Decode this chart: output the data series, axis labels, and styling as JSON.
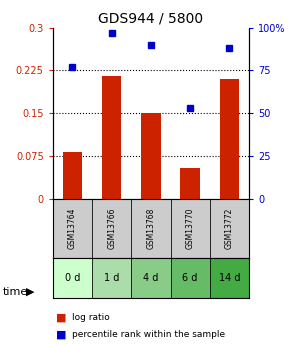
{
  "title": "GDS944 / 5800",
  "samples": [
    "GSM13764",
    "GSM13766",
    "GSM13768",
    "GSM13770",
    "GSM13772"
  ],
  "time_labels": [
    "0 d",
    "1 d",
    "4 d",
    "6 d",
    "14 d"
  ],
  "log_ratio": [
    0.083,
    0.215,
    0.15,
    0.055,
    0.21
  ],
  "percentile_rank": [
    77,
    97,
    90,
    53,
    88
  ],
  "bar_color": "#cc2200",
  "dot_color": "#0000cc",
  "left_ylim": [
    0,
    0.3
  ],
  "right_ylim": [
    0,
    100
  ],
  "left_yticks": [
    0,
    0.075,
    0.15,
    0.225,
    0.3
  ],
  "right_yticks": [
    0,
    25,
    50,
    75,
    100
  ],
  "left_yticklabels": [
    "0",
    "0.075",
    "0.15",
    "0.225",
    "0.3"
  ],
  "right_yticklabels": [
    "0",
    "25",
    "50",
    "75",
    "100%"
  ],
  "hlines": [
    0.075,
    0.15,
    0.225
  ],
  "sample_bg_color": "#cccccc",
  "time_bg_colors": [
    "#ccffcc",
    "#99ee99",
    "#88dd88",
    "#66cc66",
    "#44bb44"
  ],
  "legend_log_ratio": "log ratio",
  "legend_percentile": "percentile rank within the sample",
  "time_label": "time"
}
